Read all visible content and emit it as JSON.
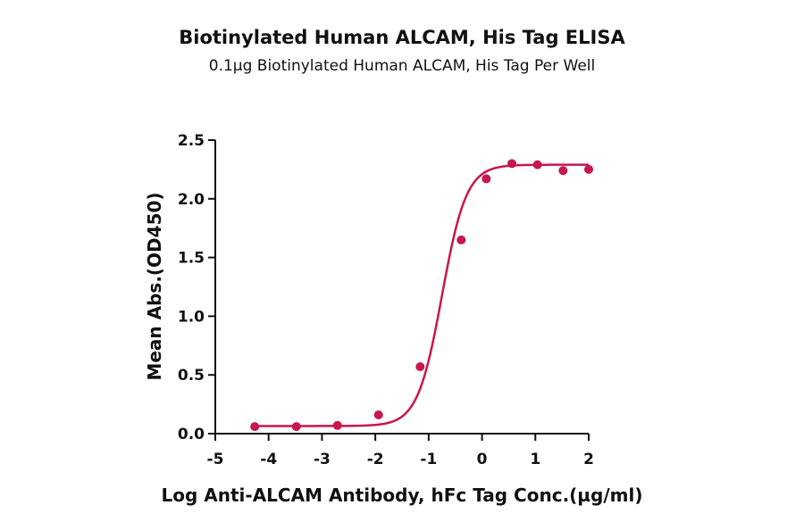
{
  "chart_data": {
    "type": "scatter",
    "title": "Biotinylated Human ALCAM, His Tag ELISA",
    "subtitle": "0.1µg Biotinylated Human ALCAM, His Tag Per Well",
    "xlabel": "Log Anti-ALCAM Antibody, hFc Tag Conc.(µg/ml)",
    "ylabel": "Mean Abs.(OD450)",
    "xlim": [
      -5,
      2
    ],
    "ylim": [
      0,
      2.5
    ],
    "xticks": [
      -5,
      -4,
      -3,
      -2,
      -1,
      0,
      1,
      2
    ],
    "yticks": [
      0.0,
      0.5,
      1.0,
      1.5,
      2.0,
      2.5
    ],
    "ytick_labels": [
      "0.0",
      "0.5",
      "1.0",
      "1.5",
      "2.0",
      "2.5"
    ],
    "grid": false,
    "color": "#c8174d",
    "series": [
      {
        "x": [
          -4.26,
          -3.48,
          -2.71,
          -1.94,
          -1.16,
          -0.39,
          0.08,
          0.56,
          1.04,
          1.52,
          2.0
        ],
        "y": [
          0.06,
          0.06,
          0.07,
          0.16,
          0.57,
          1.65,
          2.17,
          2.3,
          2.29,
          2.24,
          2.25
        ]
      }
    ],
    "fit": {
      "model": "4PL",
      "bottom": 0.065,
      "top": 2.29,
      "ec50_log": -0.75,
      "hill": 1.9
    }
  }
}
